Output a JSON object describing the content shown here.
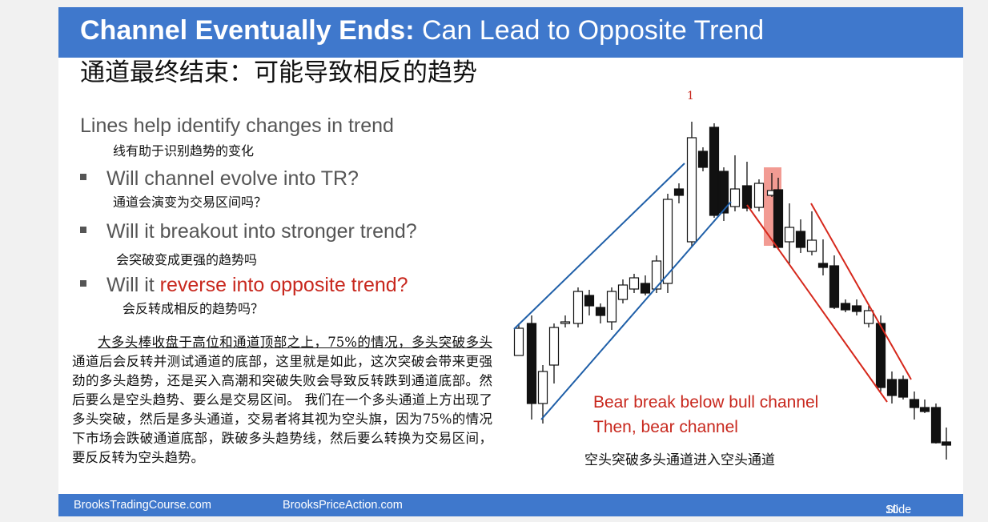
{
  "slide": {
    "title_bold": "Channel Eventually Ends:",
    "title_rest": " Can Lead to Opposite Trend",
    "title_cn": "通道最终结束：可能导致相反的趋势"
  },
  "body": {
    "headline": "Lines help identify changes in trend",
    "headline_cn": "线有助于识别趋势的变化",
    "bullets": [
      {
        "text": "Will channel evolve into TR?",
        "cn": "通道会演变为交易区间吗？"
      },
      {
        "text": "Will it breakout into stronger trend?",
        "cn": "会突破变成更强的趋势吗"
      },
      {
        "text_prefix": "Will it ",
        "text_highlight": "reverse into opposite trend?",
        "cn": "会反转成相反的趋势吗？"
      }
    ],
    "paragraph": {
      "underlined": "大多头棒收盘于高位和通道顶部之上，75%的情况，多头突破多头",
      "rest": "通道后会反转并测试通道的底部，这里就是如此，这次突破会带来更强劲的多头趋势，还是买入高潮和突破失败会导致反转跌到通道底部。然后要么是空头趋势、要么是交易区间。  我们在一个多头通道上方出现了多头突破，然后是多头通道，交易者将其视为空头旗，因为75%的情况下市场会跌破通道底部，跌破多头趋势线，然后要么转换为交易区间，要反反转为空头趋势。"
    }
  },
  "chart": {
    "bar_number_label": "1",
    "annotation_line1": "Bear break below bull channel",
    "annotation_line2": "Then, bear channel",
    "annotation_cn": "空头突破多头通道进入空头通道",
    "colors": {
      "bull_channel": "#1f5fa8",
      "bear_channel": "#d6281c",
      "highlight": "#f08a80"
    }
  },
  "footer": {
    "left": "BrooksTradingCourse.com",
    "center": "BrooksPriceAction.com",
    "slide_label": "Slide",
    "slide_number": "10"
  }
}
